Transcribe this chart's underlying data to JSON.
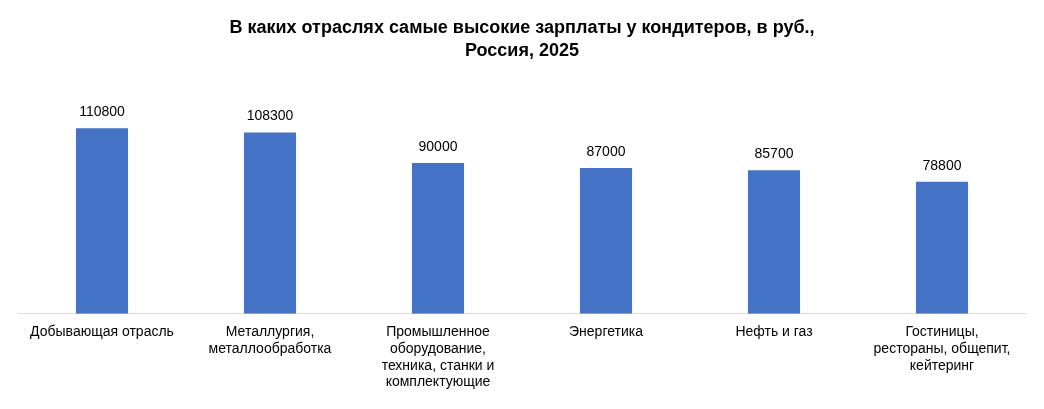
{
  "chart_data": {
    "type": "bar",
    "title": "В каких отраслях самые высокие зарплаты у кондитеров, в руб., Россия, 2025",
    "categories": [
      "Добывающая отрасль",
      "Металлургия, металлообработка",
      "Промышленное оборудование, техника, станки и комплектующие",
      "Энергетика",
      "Нефть и газ",
      "Гостиницы, рестораны, общепит, кейтеринг"
    ],
    "values": [
      110800,
      108300,
      90000,
      87000,
      85700,
      78800
    ],
    "color": "#4472c4",
    "data_labels": true,
    "grid": false,
    "legend": false
  }
}
